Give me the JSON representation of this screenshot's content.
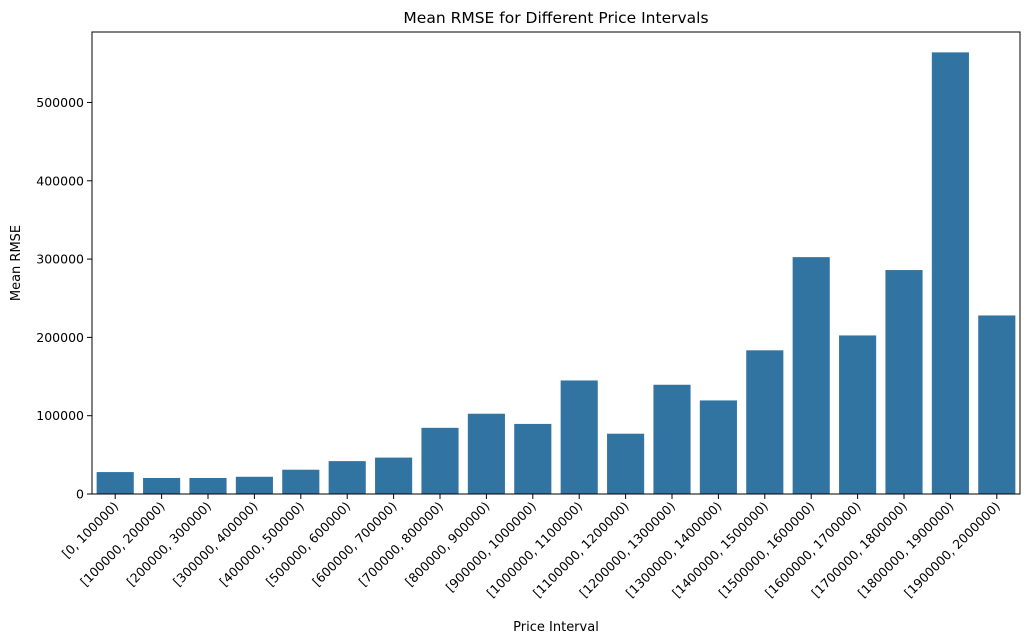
{
  "chart_data": {
    "type": "bar",
    "title": "Mean RMSE for Different Price Intervals",
    "xlabel": "Price Interval",
    "ylabel": "Mean RMSE",
    "ylim": [
      0,
      590000
    ],
    "yticks": [
      0,
      100000,
      200000,
      300000,
      400000,
      500000
    ],
    "ytick_labels": [
      "0",
      "100000",
      "200000",
      "300000",
      "400000",
      "500000"
    ],
    "grid": false,
    "bar_color": "#3274a1",
    "categories": [
      "[0, 100000)",
      "[100000, 200000)",
      "[200000, 300000)",
      "[300000, 400000)",
      "[400000, 500000)",
      "[500000, 600000)",
      "[600000, 700000)",
      "[700000, 800000)",
      "[800000, 900000)",
      "[900000, 1000000)",
      "[1000000, 1100000)",
      "[1100000, 1200000)",
      "[1200000, 1300000)",
      "[1300000, 1400000)",
      "[1400000, 1500000)",
      "[1500000, 1600000)",
      "[1600000, 1700000)",
      "[1700000, 1800000)",
      "[1800000, 1900000)",
      "[1900000, 2000000)"
    ],
    "values": [
      28000,
      20500,
      20500,
      22000,
      31000,
      42000,
      46500,
      84500,
      102500,
      89500,
      145000,
      77000,
      139500,
      119500,
      183500,
      302500,
      202500,
      286000,
      564000,
      228000
    ]
  }
}
